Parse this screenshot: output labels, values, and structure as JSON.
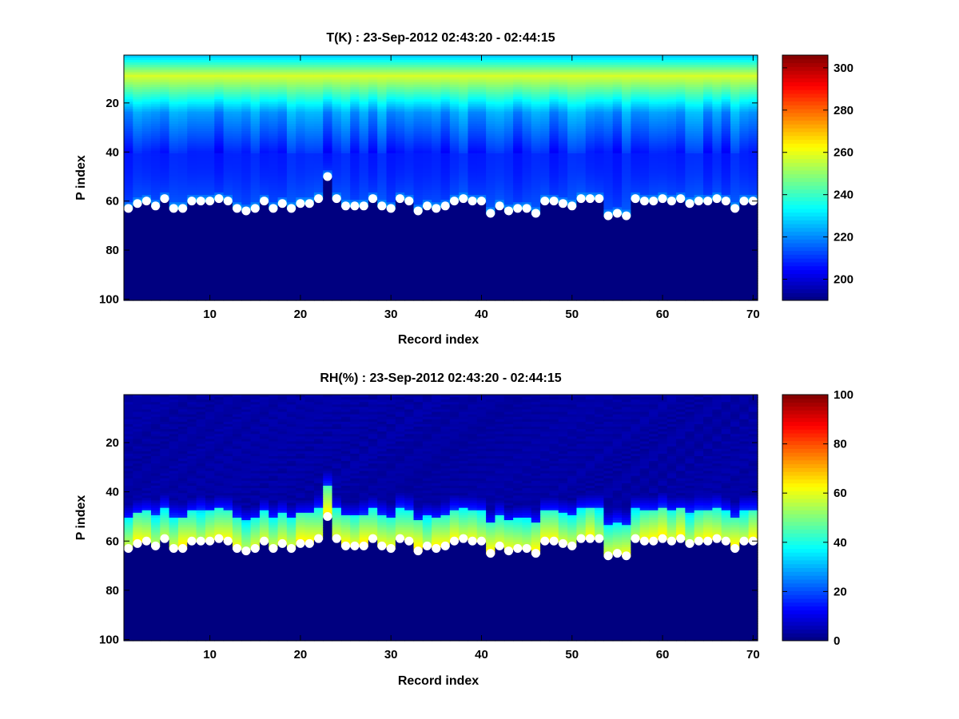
{
  "chart_data": [
    {
      "type": "heatmap",
      "title": "T(K) : 23-Sep-2012 02:43:20 - 02:44:15",
      "xlabel": "Record index",
      "ylabel": "P index",
      "xlim": [
        0.5,
        70.5
      ],
      "ylim": [
        0.5,
        100.5
      ],
      "y_direction": "reverse",
      "x_ticks": [
        10,
        20,
        30,
        40,
        50,
        60,
        70
      ],
      "y_ticks": [
        20,
        40,
        60,
        80,
        100
      ],
      "colorbar": {
        "min": 190,
        "max": 306,
        "ticks": [
          200,
          220,
          240,
          260,
          280,
          300
        ],
        "colormap": "jet"
      },
      "surface_marker_color": "#ffffff",
      "fill_value": 190,
      "profile_model": {
        "comment_free": true,
        "top_value": 228,
        "peak_level": 9,
        "peak_value": 258,
        "mid_level": 24,
        "mid_value": 222,
        "low_level": 40,
        "low_value": 208,
        "near_surface_value": 214,
        "at_surface_value": 228
      }
    },
    {
      "type": "heatmap",
      "title": "RH(%) : 23-Sep-2012 02:43:20 - 02:44:15",
      "xlabel": "Record index",
      "ylabel": "P index",
      "xlim": [
        0.5,
        70.5
      ],
      "ylim": [
        0.5,
        100.5
      ],
      "y_direction": "reverse",
      "x_ticks": [
        10,
        20,
        30,
        40,
        50,
        60,
        70
      ],
      "y_ticks": [
        20,
        40,
        60,
        80,
        100
      ],
      "colorbar": {
        "min": 0,
        "max": 100,
        "ticks": [
          0,
          20,
          40,
          60,
          80,
          100
        ],
        "colormap": "jet"
      },
      "surface_marker_color": "#ffffff",
      "fill_value": 0,
      "profile_model": {
        "comment_free": true,
        "dry_value": 2,
        "moist_start_offset": 12,
        "moist_peak_value": 62
      }
    }
  ],
  "surface_index": [
    63,
    61,
    60,
    62,
    59,
    63,
    63,
    60,
    60,
    60,
    59,
    60,
    63,
    64,
    63,
    60,
    63,
    61,
    63,
    61,
    61,
    59,
    50,
    59,
    62,
    62,
    62,
    59,
    62,
    63,
    59,
    60,
    64,
    62,
    63,
    62,
    60,
    59,
    60,
    60,
    65,
    62,
    64,
    63,
    63,
    65,
    60,
    60,
    61,
    62,
    59,
    59,
    59,
    66,
    65,
    66,
    59,
    60,
    60,
    59,
    60,
    59,
    61,
    60,
    60,
    59,
    60,
    63,
    60,
    60
  ]
}
